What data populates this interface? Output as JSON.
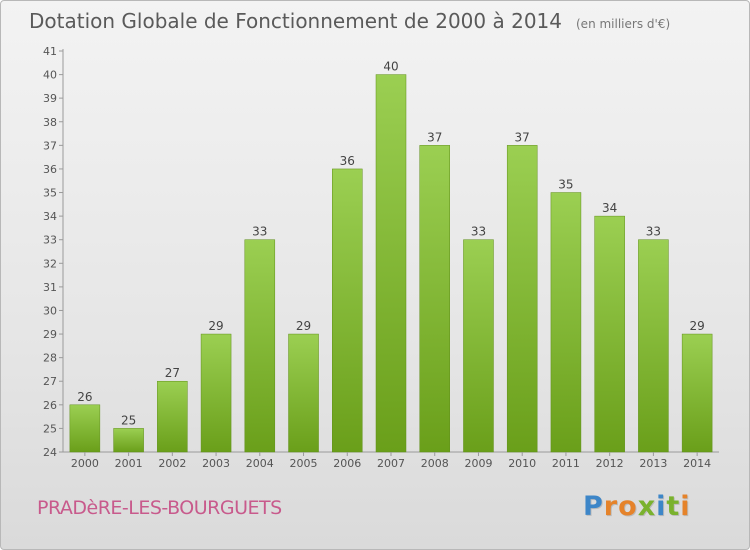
{
  "header": {
    "title": "Dotation Globale de Fonctionnement de 2000 à 2014",
    "unit": "(en milliers d'€)"
  },
  "footer": {
    "commune": "PRADèRE-LES-BOURGUETS",
    "logo": "Proxiti"
  },
  "colors": {
    "bar_top": "#9bcf52",
    "bar_bottom": "#6a9f1a",
    "logo": [
      "#3d86c8",
      "#e5832a",
      "#e5832a",
      "#7ab22e",
      "#3d86c8",
      "#7ab22e",
      "#e5832a"
    ]
  },
  "chart_data": {
    "type": "bar",
    "title": "Dotation Globale de Fonctionnement de 2000 à 2014",
    "subtitle": "(en milliers d'€)",
    "categories": [
      "2000",
      "2001",
      "2002",
      "2003",
      "2004",
      "2005",
      "2006",
      "2007",
      "2008",
      "2009",
      "2010",
      "2011",
      "2012",
      "2013",
      "2014"
    ],
    "values": [
      26,
      25,
      27,
      29,
      33,
      29,
      36,
      40,
      37,
      33,
      37,
      35,
      34,
      33,
      29
    ],
    "ylim": [
      24,
      41
    ],
    "yticks": [
      24,
      25,
      26,
      27,
      28,
      29,
      30,
      31,
      32,
      33,
      34,
      35,
      36,
      37,
      38,
      39,
      40,
      41
    ],
    "grid": false,
    "legend": "none"
  }
}
